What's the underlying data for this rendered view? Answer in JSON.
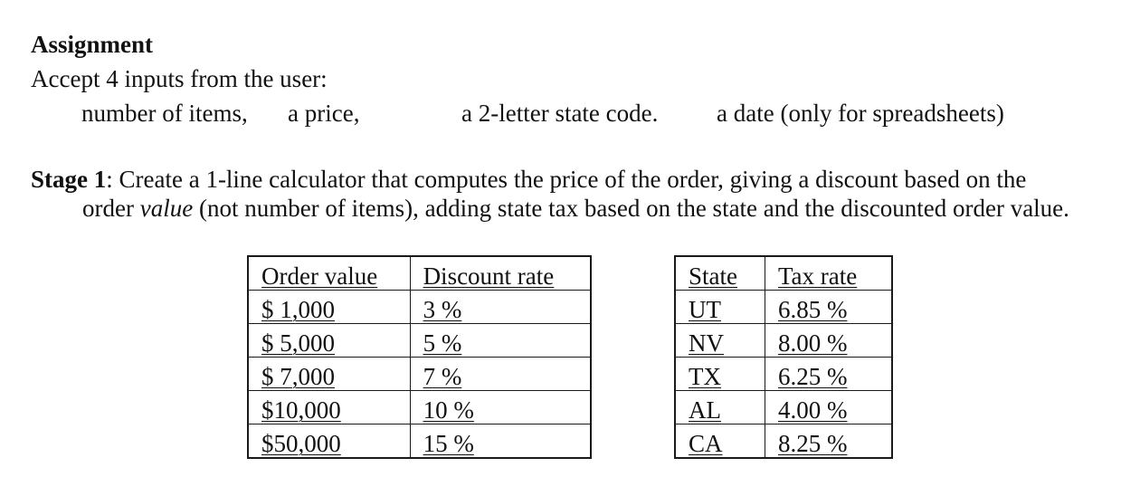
{
  "heading": "Assignment",
  "intro": "Accept 4 inputs from the user:",
  "inputs": [
    "number of items,",
    "a price,",
    "a 2-letter state code.",
    "a date (only for spreadsheets)"
  ],
  "stage": {
    "label": "Stage 1",
    "text_a": ": Create a 1-line calculator that computes the price of the order, giving a discount based on the",
    "text_b": "order ",
    "text_italic": "value",
    "text_c": " (not number of items), adding state tax based on the state and the discounted order value."
  },
  "discount_table": {
    "headers": [
      "Order value",
      "Discount rate"
    ],
    "rows": [
      [
        "$ 1,000",
        "3 %"
      ],
      [
        "$ 5,000",
        "5 %"
      ],
      [
        "$ 7,000",
        "7 %"
      ],
      [
        "$10,000",
        "10 %"
      ],
      [
        "$50,000",
        "15 %"
      ]
    ]
  },
  "tax_table": {
    "headers": [
      "State",
      "Tax rate"
    ],
    "rows": [
      [
        "UT",
        "6.85 %"
      ],
      [
        "NV",
        "8.00 %"
      ],
      [
        "TX",
        "6.25 %"
      ],
      [
        "AL",
        "4.00 %"
      ],
      [
        "CA",
        "8.25 %"
      ]
    ]
  }
}
